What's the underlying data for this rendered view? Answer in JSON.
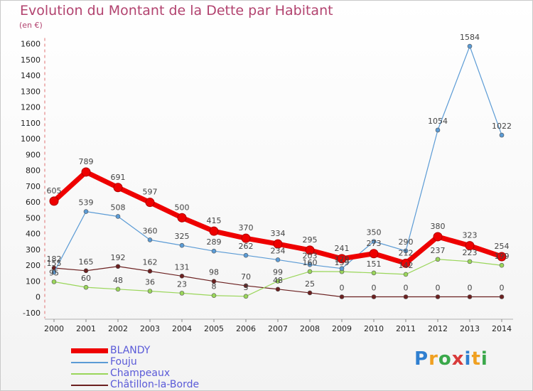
{
  "title": "Evolution du Montant de la Dette par Habitant",
  "subtitle": "(en €)",
  "logo": "Proxiti",
  "chart_data": {
    "type": "line",
    "title": "Evolution du Montant de la Dette par Habitant",
    "unit": "(en €)",
    "x": [
      "2000",
      "2001",
      "2002",
      "2003",
      "2004",
      "2005",
      "2006",
      "2007",
      "2008",
      "2009",
      "2010",
      "2011",
      "2012",
      "2013",
      "2014"
    ],
    "y_ticks": [
      -100,
      0,
      100,
      200,
      300,
      400,
      500,
      600,
      700,
      800,
      900,
      1000,
      1100,
      1200,
      1300,
      1400,
      1500,
      1600
    ],
    "ylim": [
      -100,
      1600
    ],
    "grid": false,
    "legend_position": "bottom-left",
    "series": [
      {
        "name": "BLANDY",
        "color": "#ee0000",
        "values": [
          605,
          789,
          691,
          597,
          500,
          415,
          370,
          334,
          295,
          241,
          273,
          212,
          380,
          323,
          254
        ]
      },
      {
        "name": "Fouju",
        "color": "#5b9bd5",
        "values": [
          155,
          539,
          508,
          360,
          325,
          289,
          262,
          234,
          203,
          179,
          350,
          290,
          1054,
          1584,
          1022
        ]
      },
      {
        "name": "Champeaux",
        "color": "#9ad65a",
        "values": [
          95,
          60,
          48,
          36,
          23,
          8,
          3,
          99,
          160,
          159,
          151,
          142,
          237,
          223,
          199
        ]
      },
      {
        "name": "Châtillon-la-Borde",
        "color": "#6b2020",
        "values": [
          182,
          165,
          192,
          162,
          131,
          98,
          70,
          48,
          25,
          0,
          0,
          0,
          0,
          0,
          0
        ]
      }
    ]
  }
}
